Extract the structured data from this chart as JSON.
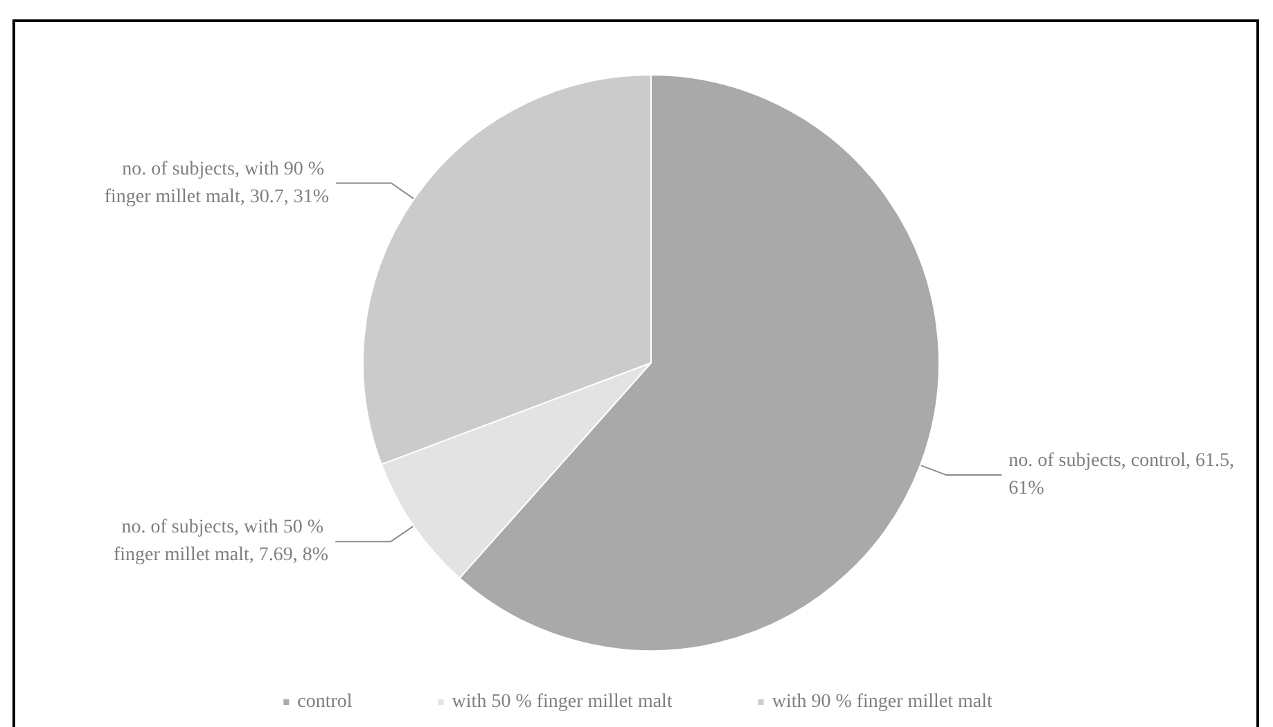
{
  "chart_data": {
    "type": "pie",
    "categories": [
      "control",
      "with 50 % finger millet malt",
      "with 90 % finger millet malt"
    ],
    "values": [
      61.5,
      7.69,
      30.7
    ],
    "colors": [
      "#a9a9a9",
      "#e3e3e3",
      "#cbcbcb"
    ],
    "value_labels": [
      "no. of subjects, control, 61.5, 61%",
      "no. of subjects, with 50 % finger millet malt, 7.69, 8%",
      "no. of subjects, with 90 % finger millet malt, 30.7, 31%"
    ],
    "legend": "bottom"
  }
}
